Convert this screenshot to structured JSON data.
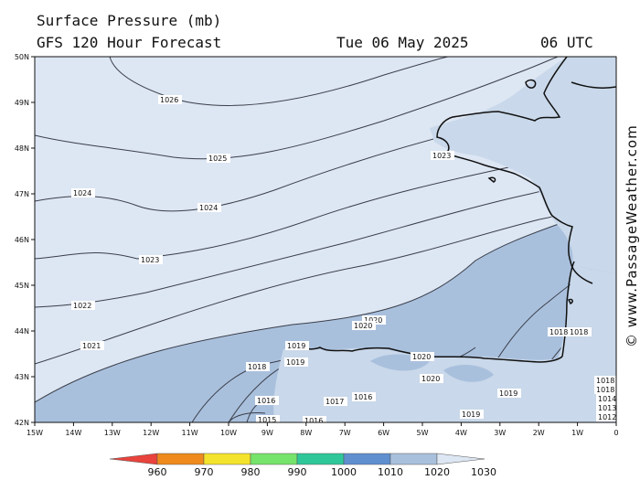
{
  "header": {
    "title": "Surface Pressure (mb)",
    "subtitle": "GFS 120 Hour Forecast",
    "date": "Tue 06 May 2025",
    "time": "06 UTC"
  },
  "watermark": "© www.PassageWeather.com",
  "map": {
    "lat_labels": [
      "50N",
      "49N",
      "48N",
      "47N",
      "46N",
      "45N",
      "44N",
      "43N",
      "42N"
    ],
    "lon_labels": [
      "15W",
      "14W",
      "13W",
      "12W",
      "11W",
      "10W",
      "9W",
      "8W",
      "7W",
      "6W",
      "5W",
      "4W",
      "3W",
      "2W",
      "1W",
      "0"
    ],
    "colors": {
      "band_1020_1030": "#dde6f3",
      "band_1010_1020": "#a9c0dd",
      "land": "#c9d8ea",
      "isobar": "#3a3f4a",
      "coast": "#111111"
    },
    "isobar_labels": {
      "l1026": "1026",
      "l1025": "1025",
      "l1024a": "1024",
      "l1024b": "1024",
      "l1023a": "1023",
      "l1023b": "1023",
      "l1022": "1022",
      "l1021": "1021",
      "l1020a": "1020",
      "l1020b": "1020",
      "l1020c": "1020",
      "l1020d": "1020",
      "l1019a": "1019",
      "l1019b": "1019",
      "l1019c": "1019",
      "l1019d": "1019",
      "l1018a": "1018",
      "l1018b": "1018",
      "l1018c": "1018",
      "l1018d": "1018",
      "l1018e": "1018",
      "l1017": "1017",
      "l1016a": "1016",
      "l1016b": "1016",
      "l1016c": "1016",
      "l1015": "1015",
      "l1014": "1014",
      "l1013": "1013",
      "l1012": "1012"
    }
  },
  "scale": {
    "labels": [
      "960",
      "970",
      "980",
      "990",
      "1000",
      "1010",
      "1020",
      "1030"
    ],
    "colors": [
      "#e8433c",
      "#ef8a1c",
      "#f4e32c",
      "#76e36b",
      "#2fc79a",
      "#5f8fcf",
      "#a9c0dd",
      "#dde6f3"
    ]
  }
}
